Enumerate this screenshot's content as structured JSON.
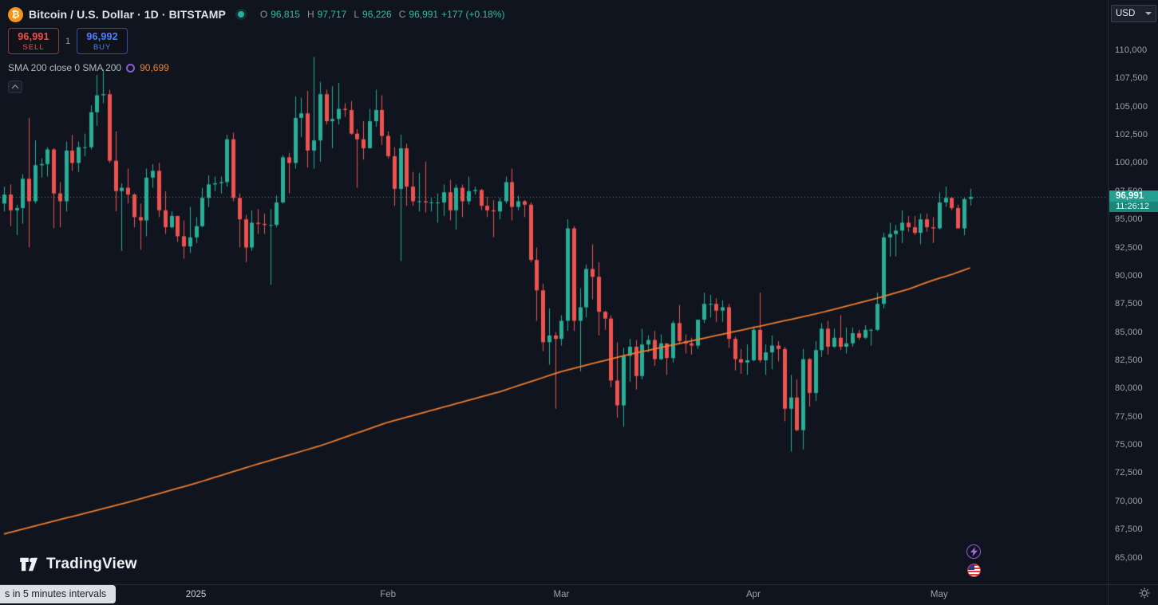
{
  "header": {
    "symbol_title": "Bitcoin / U.S. Dollar · 1D · BITSTAMP",
    "ohlc": {
      "o_label": "O",
      "o_value": "96,815",
      "h_label": "H",
      "h_value": "97,717",
      "l_label": "L",
      "l_value": "96,226",
      "c_label": "C",
      "c_value": "96,991",
      "change": "+177 (+0.18%)"
    },
    "sell": {
      "price": "96,991",
      "label": "SELL"
    },
    "spread": "1",
    "buy": {
      "price": "96,992",
      "label": "BUY"
    },
    "indicator": {
      "title": "SMA 200 close 0 SMA 200",
      "value": "90,699"
    }
  },
  "price_axis": {
    "currency": "USD",
    "last": {
      "price": "96,991",
      "countdown": "11:26:12"
    },
    "ticks": [
      {
        "text": "110,000",
        "value": 110000
      },
      {
        "text": "107,500",
        "value": 107500
      },
      {
        "text": "105,000",
        "value": 105000
      },
      {
        "text": "102,500",
        "value": 102500
      },
      {
        "text": "100,000",
        "value": 100000
      },
      {
        "text": "97,500",
        "value": 97500
      },
      {
        "text": "95,000",
        "value": 95000
      },
      {
        "text": "92,500",
        "value": 92500
      },
      {
        "text": "90,000",
        "value": 90000
      },
      {
        "text": "87,500",
        "value": 87500
      },
      {
        "text": "85,000",
        "value": 85000
      },
      {
        "text": "82,500",
        "value": 82500
      },
      {
        "text": "80,000",
        "value": 80000
      },
      {
        "text": "77,500",
        "value": 77500
      },
      {
        "text": "75,000",
        "value": 75000
      },
      {
        "text": "72,500",
        "value": 72500
      },
      {
        "text": "70,000",
        "value": 70000
      },
      {
        "text": "67,500",
        "value": 67500
      },
      {
        "text": "65,000",
        "value": 65000
      }
    ]
  },
  "watermark": {
    "text": "TradingView"
  },
  "toast": {
    "text": "s in 5 minutes intervals"
  },
  "chart_data": {
    "type": "candlestick",
    "symbol": "BTCUSD",
    "exchange": "BITSTAMP",
    "interval": "1D",
    "ylim": [
      65000,
      110000
    ],
    "last_price": 96991,
    "colors": {
      "up": "#2aae97",
      "down": "#ef5350",
      "sma": "#ef7d2f",
      "last_price_line": "#4b8a80"
    },
    "time_ticks": [
      {
        "label": "2025",
        "day": 31
      },
      {
        "label": "Feb",
        "day": 62
      },
      {
        "label": "Mar",
        "day": 90
      },
      {
        "label": "Apr",
        "day": 121
      },
      {
        "label": "May",
        "day": 151
      }
    ],
    "sma200": {
      "name": "SMA 200",
      "last_value": 90699,
      "points": [
        [
          0,
          67100
        ],
        [
          10,
          68500
        ],
        [
          20,
          69900
        ],
        [
          31,
          71600
        ],
        [
          41,
          73300
        ],
        [
          51,
          74900
        ],
        [
          62,
          77000
        ],
        [
          72,
          78500
        ],
        [
          80,
          79700
        ],
        [
          90,
          81500
        ],
        [
          100,
          82900
        ],
        [
          110,
          84100
        ],
        [
          121,
          85400
        ],
        [
          131,
          86600
        ],
        [
          141,
          88000
        ],
        [
          146,
          88800
        ],
        [
          150,
          89600
        ],
        [
          153,
          90100
        ],
        [
          156,
          90700
        ]
      ]
    },
    "candles_unit": "thousands_usd",
    "candles": [
      [
        96.4,
        97.9,
        95.7,
        97.2
      ],
      [
        97.2,
        98.1,
        94.4,
        95.8
      ],
      [
        95.8,
        96.3,
        93.6,
        96.0
      ],
      [
        96.0,
        99.0,
        94.6,
        98.6
      ],
      [
        98.6,
        104.0,
        92.5,
        96.6
      ],
      [
        96.6,
        102.0,
        96.4,
        99.8
      ],
      [
        99.8,
        100.4,
        98.7,
        99.9
      ],
      [
        99.9,
        101.4,
        98.8,
        101.2
      ],
      [
        101.2,
        101.3,
        94.2,
        97.3
      ],
      [
        97.3,
        98.3,
        94.3,
        96.6
      ],
      [
        96.6,
        101.9,
        95.7,
        101.1
      ],
      [
        101.1,
        102.5,
        99.3,
        100.0
      ],
      [
        100.0,
        101.9,
        99.2,
        101.4
      ],
      [
        101.4,
        102.6,
        100.6,
        101.4
      ],
      [
        101.4,
        105.1,
        101.2,
        104.5
      ],
      [
        104.5,
        107.8,
        103.3,
        106.0
      ],
      [
        106.0,
        108.3,
        105.3,
        106.1
      ],
      [
        106.1,
        106.5,
        100.0,
        100.2
      ],
      [
        100.2,
        102.8,
        95.7,
        97.5
      ],
      [
        97.5,
        98.2,
        92.2,
        97.8
      ],
      [
        97.8,
        99.5,
        96.4,
        97.2
      ],
      [
        97.2,
        97.3,
        94.3,
        95.2
      ],
      [
        95.2,
        96.4,
        92.3,
        94.9
      ],
      [
        94.9,
        99.5,
        93.5,
        98.7
      ],
      [
        98.7,
        99.9,
        97.8,
        99.3
      ],
      [
        99.3,
        100.0,
        95.2,
        95.8
      ],
      [
        95.8,
        97.5,
        93.7,
        94.3
      ],
      [
        94.3,
        95.7,
        94.2,
        95.3
      ],
      [
        95.3,
        95.3,
        93.0,
        93.5
      ],
      [
        93.5,
        94.9,
        91.5,
        92.6
      ],
      [
        92.6,
        96.1,
        92.0,
        93.4
      ],
      [
        93.4,
        95.2,
        92.9,
        94.4
      ],
      [
        94.4,
        97.8,
        94.3,
        96.9
      ],
      [
        96.9,
        98.9,
        96.1,
        98.1
      ],
      [
        98.1,
        98.8,
        97.5,
        98.2
      ],
      [
        98.2,
        98.8,
        97.3,
        98.3
      ],
      [
        98.3,
        102.5,
        97.9,
        102.1
      ],
      [
        102.1,
        102.7,
        96.6,
        96.9
      ],
      [
        96.9,
        97.3,
        92.5,
        95.0
      ],
      [
        95.0,
        95.4,
        91.2,
        92.5
      ],
      [
        92.5,
        95.8,
        92.2,
        94.7
      ],
      [
        94.7,
        95.9,
        93.7,
        94.6
      ],
      [
        94.6,
        95.5,
        93.7,
        94.5
      ],
      [
        94.5,
        95.9,
        89.2,
        94.5
      ],
      [
        94.5,
        97.1,
        94.3,
        96.5
      ],
      [
        96.5,
        100.7,
        96.4,
        100.5
      ],
      [
        100.5,
        100.9,
        97.3,
        100.0
      ],
      [
        100.0,
        105.9,
        99.5,
        104.0
      ],
      [
        104.0,
        105.8,
        102.3,
        104.4
      ],
      [
        104.4,
        106.4,
        99.6,
        101.1
      ],
      [
        101.1,
        109.4,
        99.5,
        102.0
      ],
      [
        102.0,
        107.2,
        100.1,
        106.1
      ],
      [
        106.1,
        106.5,
        103.4,
        103.7
      ],
      [
        103.7,
        106.8,
        101.3,
        103.9
      ],
      [
        103.9,
        107.1,
        103.4,
        104.8
      ],
      [
        104.8,
        105.3,
        104.1,
        104.7
      ],
      [
        104.7,
        105.5,
        102.5,
        102.6
      ],
      [
        102.6,
        103.0,
        97.8,
        102.1
      ],
      [
        102.1,
        103.7,
        100.3,
        101.3
      ],
      [
        101.3,
        104.8,
        101.3,
        103.7
      ],
      [
        103.7,
        106.5,
        103.2,
        104.7
      ],
      [
        104.7,
        106.0,
        101.6,
        102.4
      ],
      [
        102.4,
        102.8,
        100.4,
        100.6
      ],
      [
        100.6,
        101.4,
        96.2,
        97.7
      ],
      [
        97.7,
        102.5,
        91.3,
        101.3
      ],
      [
        101.3,
        101.7,
        96.2,
        97.9
      ],
      [
        97.9,
        99.2,
        96.2,
        96.6
      ],
      [
        96.6,
        99.1,
        95.7,
        96.6
      ],
      [
        96.6,
        100.1,
        95.6,
        96.5
      ],
      [
        96.5,
        96.9,
        95.7,
        96.5
      ],
      [
        96.5,
        97.3,
        94.7,
        96.5
      ],
      [
        96.5,
        98.1,
        95.3,
        97.4
      ],
      [
        97.4,
        98.5,
        94.9,
        95.8
      ],
      [
        95.8,
        98.1,
        94.1,
        97.8
      ],
      [
        97.8,
        98.1,
        95.2,
        96.6
      ],
      [
        96.6,
        98.8,
        96.3,
        97.5
      ],
      [
        97.5,
        97.9,
        97.2,
        97.6
      ],
      [
        97.6,
        97.7,
        95.8,
        96.2
      ],
      [
        96.2,
        97.0,
        95.2,
        95.8
      ],
      [
        95.8,
        96.7,
        93.4,
        95.7
      ],
      [
        95.7,
        96.9,
        95.0,
        96.6
      ],
      [
        96.6,
        98.8,
        96.4,
        98.3
      ],
      [
        98.3,
        99.5,
        94.9,
        96.1
      ],
      [
        96.1,
        97.1,
        95.8,
        96.6
      ],
      [
        96.6,
        96.7,
        95.2,
        96.3
      ],
      [
        96.3,
        96.5,
        91.2,
        91.4
      ],
      [
        91.4,
        92.5,
        86.0,
        88.7
      ],
      [
        88.7,
        89.3,
        83.3,
        84.1
      ],
      [
        84.1,
        87.1,
        82.1,
        84.7
      ],
      [
        84.7,
        85.0,
        78.2,
        84.4
      ],
      [
        84.4,
        86.5,
        83.8,
        86.0
      ],
      [
        86.0,
        95.0,
        85.1,
        94.2
      ],
      [
        94.2,
        94.4,
        85.1,
        86.0
      ],
      [
        86.0,
        88.9,
        81.5,
        87.2
      ],
      [
        87.2,
        91.0,
        86.3,
        90.6
      ],
      [
        90.6,
        92.8,
        87.9,
        89.9
      ],
      [
        89.9,
        91.2,
        84.7,
        86.8
      ],
      [
        86.8,
        86.9,
        85.2,
        86.2
      ],
      [
        86.2,
        86.5,
        80.1,
        80.7
      ],
      [
        80.7,
        84.1,
        77.4,
        78.5
      ],
      [
        78.5,
        83.6,
        76.6,
        82.9
      ],
      [
        82.9,
        84.4,
        80.6,
        83.7
      ],
      [
        83.7,
        84.3,
        79.9,
        81.1
      ],
      [
        81.1,
        85.3,
        80.8,
        83.9
      ],
      [
        83.9,
        84.7,
        83.2,
        84.3
      ],
      [
        84.3,
        85.1,
        82.0,
        82.6
      ],
      [
        82.6,
        84.8,
        82.5,
        84.0
      ],
      [
        84.0,
        84.0,
        81.2,
        82.7
      ],
      [
        82.7,
        86.0,
        82.3,
        85.8
      ],
      [
        85.8,
        87.4,
        83.9,
        84.2
      ],
      [
        84.2,
        84.8,
        83.1,
        84.0
      ],
      [
        84.0,
        84.5,
        83.0,
        83.8
      ],
      [
        83.8,
        86.1,
        83.5,
        86.1
      ],
      [
        86.1,
        88.5,
        85.8,
        87.5
      ],
      [
        87.5,
        88.3,
        86.3,
        87.5
      ],
      [
        87.5,
        88.0,
        85.9,
        86.9
      ],
      [
        86.9,
        87.8,
        85.9,
        87.2
      ],
      [
        87.2,
        87.5,
        83.6,
        84.4
      ],
      [
        84.4,
        84.6,
        81.6,
        82.6
      ],
      [
        82.6,
        83.5,
        81.3,
        82.3
      ],
      [
        82.3,
        83.9,
        81.2,
        82.5
      ],
      [
        82.5,
        85.5,
        82.4,
        85.2
      ],
      [
        85.2,
        88.5,
        82.3,
        82.5
      ],
      [
        82.5,
        83.9,
        81.2,
        83.2
      ],
      [
        83.2,
        84.7,
        81.7,
        83.8
      ],
      [
        83.8,
        84.2,
        82.4,
        83.5
      ],
      [
        83.5,
        83.7,
        77.1,
        78.2
      ],
      [
        78.2,
        81.2,
        74.4,
        79.2
      ],
      [
        79.2,
        80.8,
        76.2,
        76.3
      ],
      [
        76.3,
        83.5,
        74.6,
        82.6
      ],
      [
        82.6,
        82.7,
        78.4,
        79.6
      ],
      [
        79.6,
        84.2,
        78.9,
        83.4
      ],
      [
        83.4,
        85.8,
        82.8,
        85.3
      ],
      [
        85.3,
        86.0,
        83.0,
        83.7
      ],
      [
        83.7,
        85.3,
        83.6,
        84.5
      ],
      [
        84.5,
        86.5,
        83.4,
        83.7
      ],
      [
        83.7,
        85.4,
        83.1,
        84.0
      ],
      [
        84.0,
        85.4,
        83.7,
        84.9
      ],
      [
        84.9,
        85.2,
        84.3,
        84.5
      ],
      [
        84.5,
        85.6,
        84.4,
        85.2
      ],
      [
        85.2,
        85.3,
        83.8,
        85.2
      ],
      [
        85.2,
        88.5,
        85.1,
        87.5
      ],
      [
        87.5,
        93.8,
        87.1,
        93.4
      ],
      [
        93.4,
        94.7,
        91.7,
        93.7
      ],
      [
        93.7,
        94.5,
        91.7,
        94.0
      ],
      [
        94.0,
        95.8,
        92.9,
        94.7
      ],
      [
        94.7,
        95.3,
        93.9,
        94.3
      ],
      [
        94.3,
        95.3,
        93.6,
        93.8
      ],
      [
        93.8,
        95.5,
        92.8,
        95.0
      ],
      [
        95.0,
        95.5,
        93.9,
        94.3
      ],
      [
        94.3,
        95.2,
        92.9,
        94.2
      ],
      [
        94.2,
        97.4,
        94.1,
        96.5
      ],
      [
        96.5,
        97.9,
        96.1,
        96.9
      ],
      [
        96.9,
        97.0,
        95.8,
        96.0
      ],
      [
        96.0,
        96.3,
        94.2,
        94.2
      ],
      [
        94.2,
        96.9,
        93.6,
        96.8
      ],
      [
        96.815,
        97.717,
        96.226,
        96.991
      ]
    ]
  }
}
